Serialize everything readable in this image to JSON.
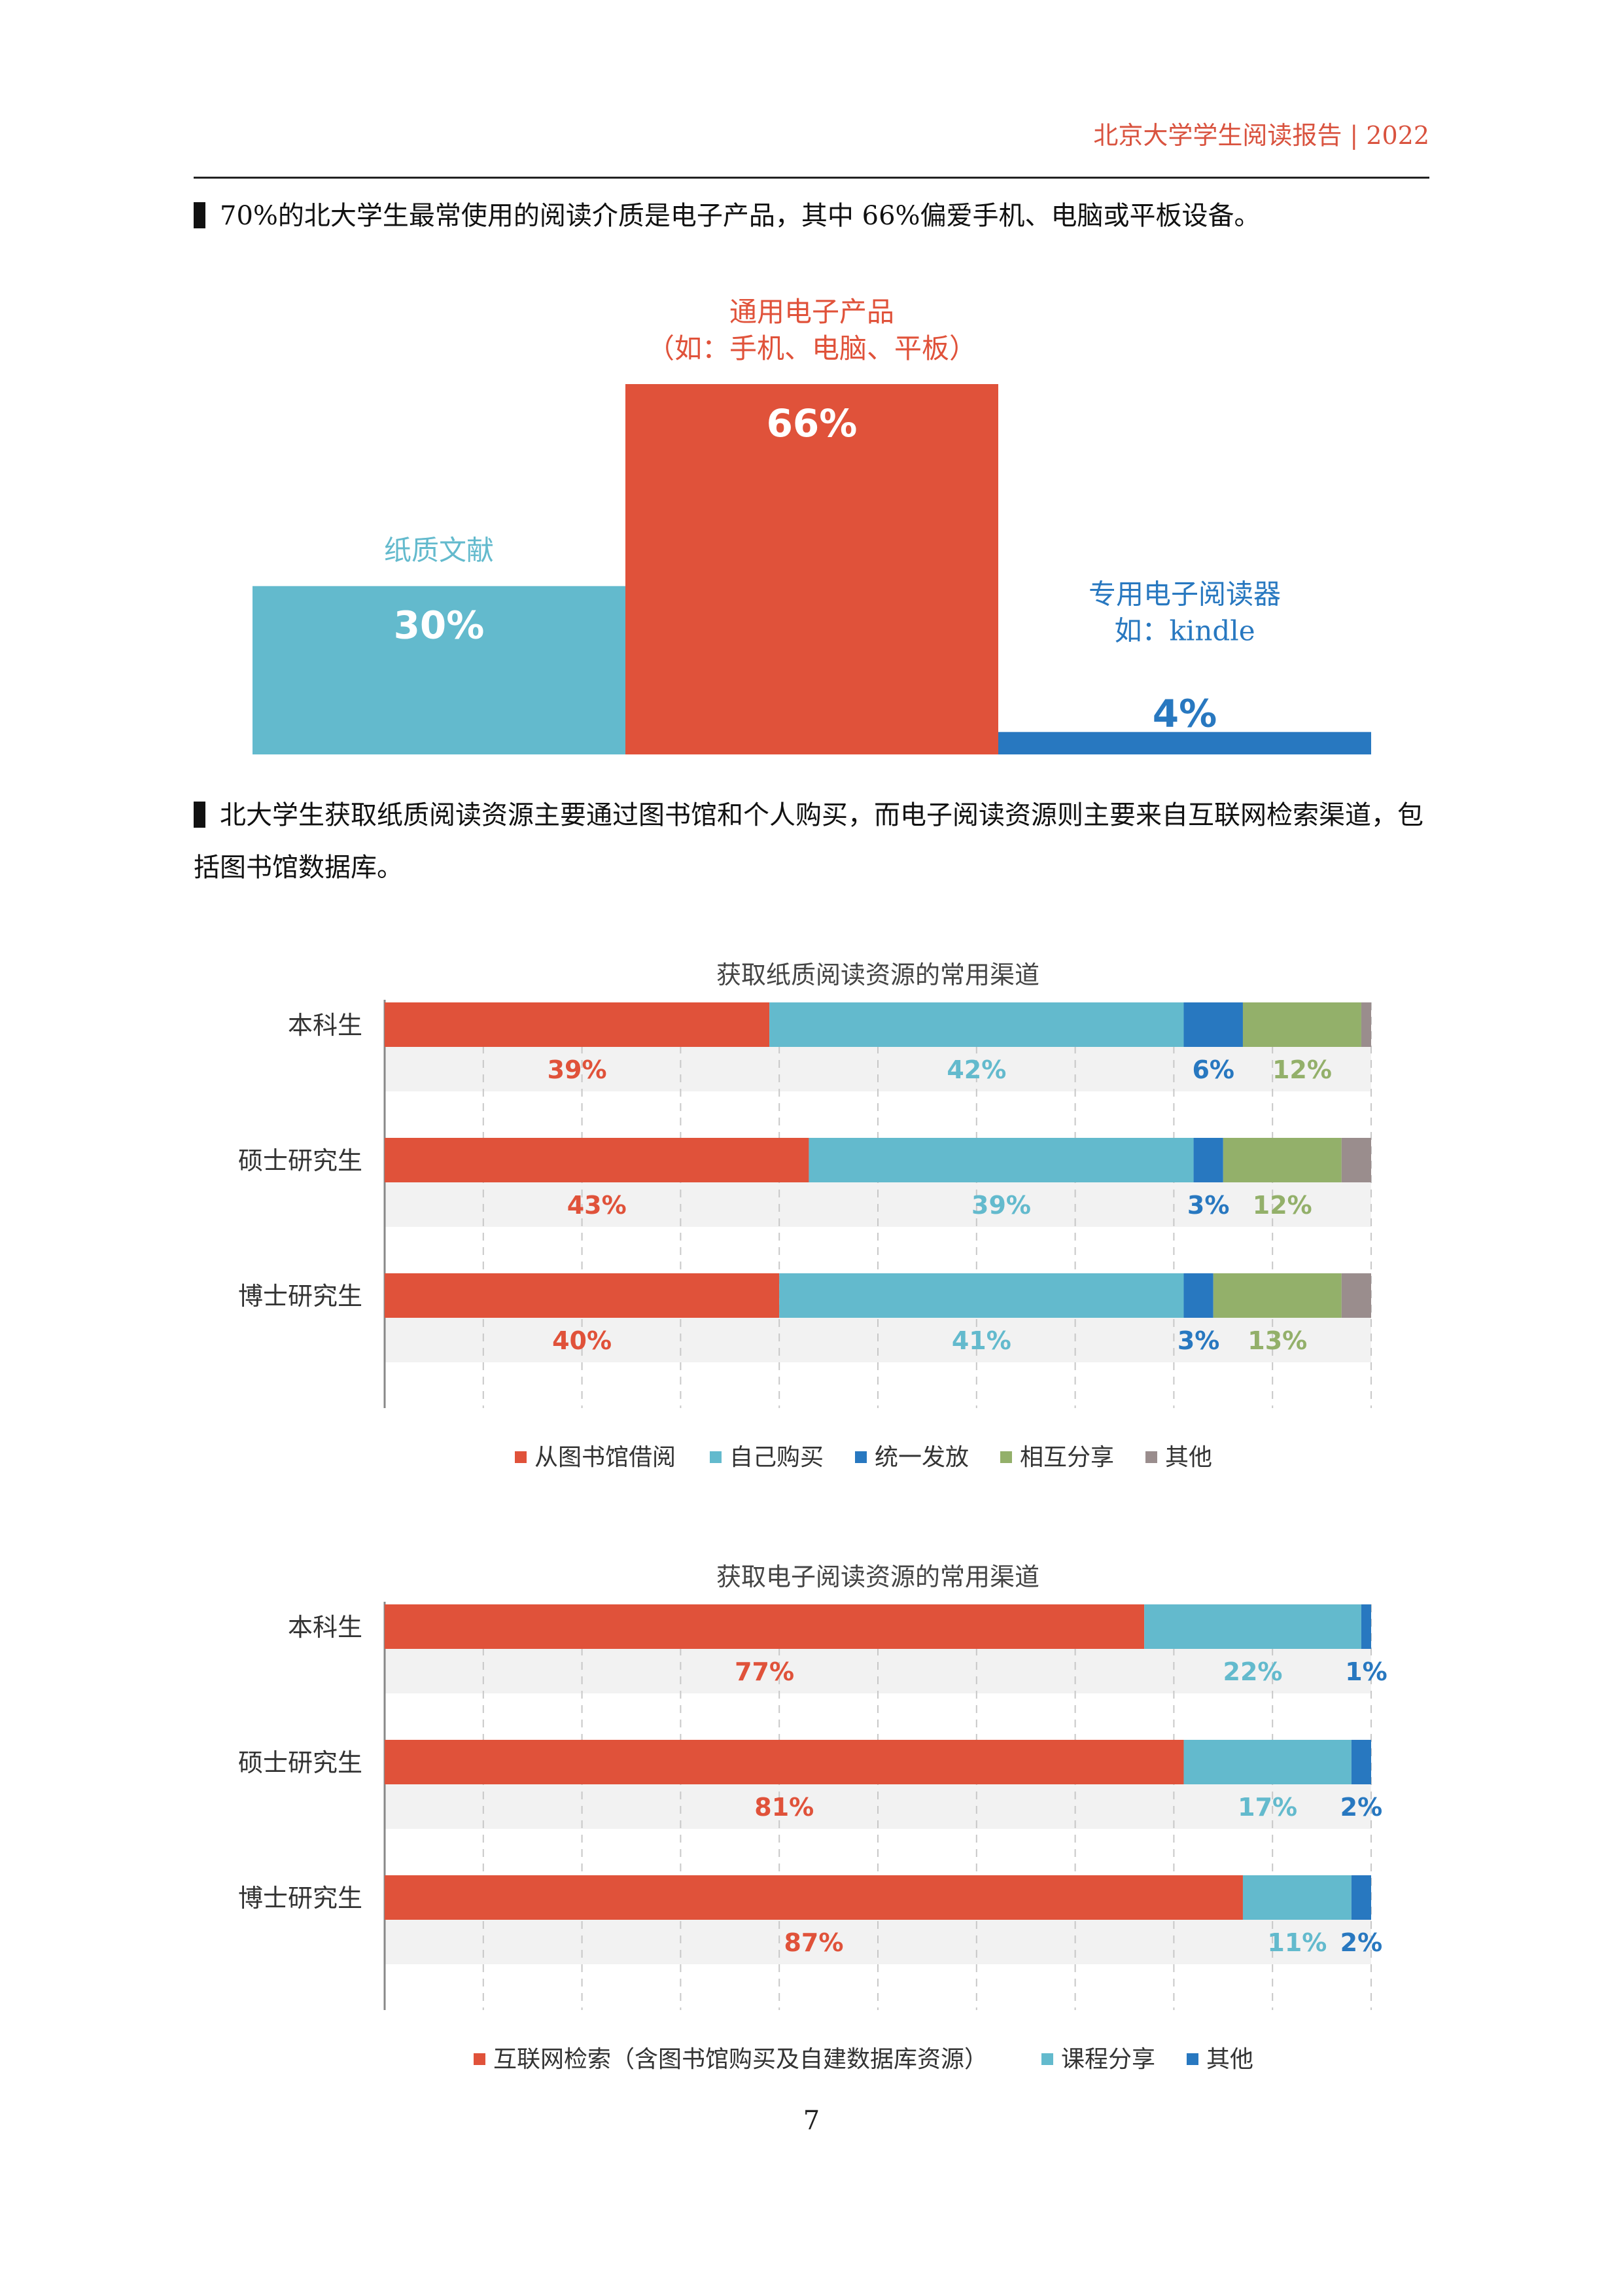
{
  "header": {
    "title": "北京大学学生阅读报告 | 2022"
  },
  "paragraphs": [
    {
      "text": "70%的北大学生最常使用的阅读介质是电子产品，其中 66%偏爱手机、电脑或平板设备。"
    },
    {
      "text": "北大学生获取纸质阅读资源主要通过图书馆和个人购买，而电子阅读资源则主要来自互联网检索渠道，包括图书馆数据库。"
    }
  ],
  "page_number": "7",
  "colors": {
    "red": "#e0523a",
    "teal": "#63bacd",
    "blue": "#2878c0",
    "green": "#93b06a",
    "gray": "#9a8d8d",
    "band": "#f2f2f2"
  },
  "chart_data": [
    {
      "type": "bar",
      "categories": [
        "纸质文献",
        "通用电子产品（如：手机、电脑、平板）",
        "专用电子阅读器如：kindle"
      ],
      "label_lines": [
        [
          "纸质文献"
        ],
        [
          "通用电子产品",
          "（如：手机、电脑、平板）"
        ],
        [
          "专用电子阅读器",
          "如：kindle"
        ]
      ],
      "values": [
        30,
        66,
        4
      ],
      "value_labels": [
        "30%",
        "66%",
        "4%"
      ],
      "colors": [
        "#63bacd",
        "#e0523a",
        "#2878c0"
      ],
      "ylim": [
        0,
        66
      ]
    },
    {
      "type": "bar",
      "stacked": true,
      "orientation": "horizontal",
      "title": "获取纸质阅读资源的常用渠道",
      "categories": [
        "本科生",
        "硕士研究生",
        "博士研究生"
      ],
      "series": [
        {
          "name": "从图书馆借阅",
          "color": "#e0523a",
          "values": [
            39,
            43,
            40
          ]
        },
        {
          "name": "自己购买",
          "color": "#63bacd",
          "values": [
            42,
            39,
            41
          ]
        },
        {
          "name": "统一发放",
          "color": "#2878c0",
          "values": [
            6,
            3,
            3
          ]
        },
        {
          "name": "相互分享",
          "color": "#93b06a",
          "values": [
            12,
            12,
            13
          ]
        },
        {
          "name": "其他",
          "color": "#9a8d8d",
          "values": [
            1,
            3,
            3
          ]
        }
      ],
      "value_labels": [
        [
          "39%",
          "42%",
          "6%",
          "12%"
        ],
        [
          "43%",
          "39%",
          "3%",
          "12%"
        ],
        [
          "40%",
          "41%",
          "3%",
          "13%"
        ]
      ],
      "legend": "bottom",
      "grid": true
    },
    {
      "type": "bar",
      "stacked": true,
      "orientation": "horizontal",
      "title": "获取电子阅读资源的常用渠道",
      "categories": [
        "本科生",
        "硕士研究生",
        "博士研究生"
      ],
      "series": [
        {
          "name": "互联网检索（含图书馆购买及自建数据库资源）",
          "color": "#e0523a",
          "values": [
            77,
            81,
            87
          ]
        },
        {
          "name": "课程分享",
          "color": "#63bacd",
          "values": [
            22,
            17,
            11
          ]
        },
        {
          "name": "其他",
          "color": "#2878c0",
          "values": [
            1,
            2,
            2
          ]
        }
      ],
      "value_labels": [
        [
          "77%",
          "22%",
          "1%"
        ],
        [
          "81%",
          "17%",
          "2%"
        ],
        [
          "87%",
          "11%",
          "2%"
        ]
      ],
      "legend": "bottom",
      "grid": true
    }
  ]
}
